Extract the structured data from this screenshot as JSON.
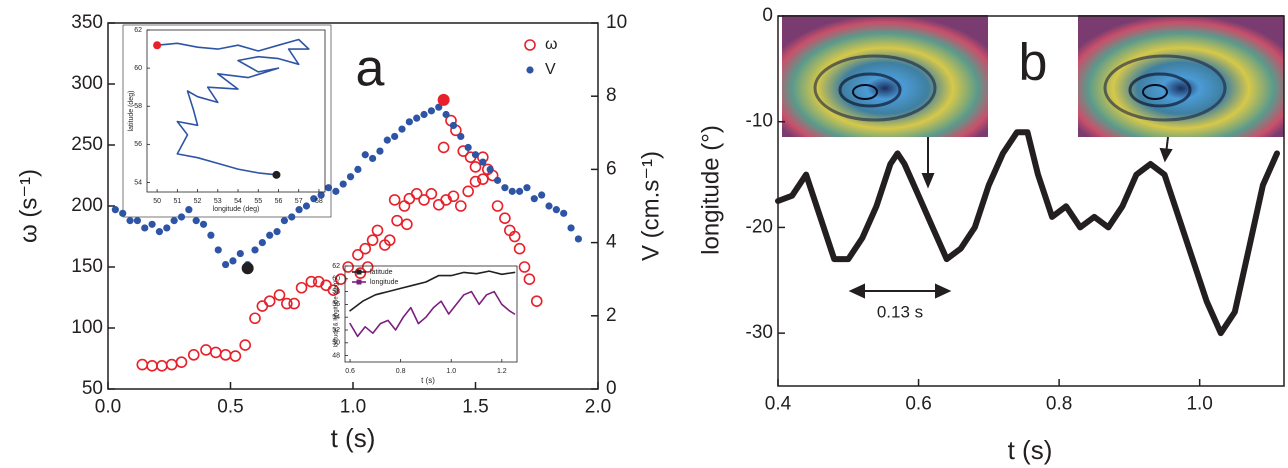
{
  "chart_data": [
    {
      "type": "scatter",
      "label": "a",
      "xlabel": "t (s)",
      "ylabel": "ω (s⁻¹)",
      "y2label": "V (cm.s⁻¹)",
      "xlim": [
        0,
        2
      ],
      "xticks": [
        {
          "value": 0,
          "label": "0.0"
        },
        0.5,
        {
          "value": 1,
          "label": "1.0"
        },
        1.5,
        {
          "value": 2,
          "label": "2.0"
        }
      ],
      "ylim": [
        50,
        350
      ],
      "yticks": [
        50,
        100,
        150,
        200,
        250,
        300,
        350
      ],
      "y2lim": [
        0,
        10
      ],
      "y2ticks": [
        0,
        2,
        4,
        6,
        8,
        10
      ],
      "legend": true,
      "series": [
        {
          "name": "ω",
          "color": "#e8202a",
          "marker": "open",
          "x": [
            0.14,
            0.18,
            0.22,
            0.26,
            0.3,
            0.35,
            0.4,
            0.44,
            0.48,
            0.52,
            0.56,
            0.6,
            0.63,
            0.66,
            0.7,
            0.73,
            0.76,
            0.79,
            0.83,
            0.86,
            0.89,
            0.92,
            0.95,
            0.98,
            1.02,
            1.05,
            1.08,
            1.1,
            1.13,
            1.15,
            1.18,
            1.21,
            1.23,
            1.26,
            1.29,
            1.32,
            1.35,
            1.38,
            1.41,
            1.44,
            1.47,
            1.5,
            1.53,
            1.55,
            1.37,
            1.4,
            1.42,
            1.45,
            1.48,
            1.5,
            1.53,
            1.57,
            1.59,
            1.62,
            1.64,
            1.66,
            1.68,
            1.7,
            1.72,
            1.75,
            1.03,
            1.06,
            1.22,
            1.17
          ],
          "values": [
            70,
            69,
            69,
            70,
            72,
            78,
            82,
            80,
            78,
            77,
            86,
            108,
            118,
            122,
            127,
            120,
            120,
            133,
            138,
            138,
            135,
            131,
            140,
            150,
            160,
            165,
            172,
            180,
            168,
            172,
            188,
            200,
            206,
            210,
            205,
            210,
            201,
            205,
            208,
            200,
            212,
            220,
            222,
            230,
            248,
            270,
            262,
            245,
            240,
            232,
            240,
            225,
            200,
            190,
            180,
            175,
            165,
            150,
            140,
            122,
            145,
            150,
            185,
            205
          ]
        },
        {
          "name": "V",
          "color": "#2e55a5",
          "marker": "dot",
          "axis": "y2",
          "x": [
            0.03,
            0.06,
            0.09,
            0.12,
            0.15,
            0.18,
            0.21,
            0.24,
            0.27,
            0.3,
            0.33,
            0.36,
            0.39,
            0.42,
            0.45,
            0.48,
            0.51,
            0.54,
            0.57,
            0.6,
            0.63,
            0.66,
            0.69,
            0.72,
            0.75,
            0.78,
            0.81,
            0.84,
            0.87,
            0.9,
            0.93,
            0.96,
            0.99,
            1.02,
            1.05,
            1.08,
            1.11,
            1.14,
            1.17,
            1.2,
            1.23,
            1.26,
            1.29,
            1.32,
            1.35,
            1.38,
            1.41,
            1.44,
            1.47,
            1.5,
            1.53,
            1.56,
            1.59,
            1.62,
            1.65,
            1.68,
            1.71,
            1.74,
            1.77,
            1.8,
            1.83,
            1.86,
            1.89,
            1.92
          ],
          "values": [
            4.9,
            4.8,
            4.6,
            4.6,
            4.4,
            4.5,
            4.3,
            4.4,
            4.6,
            4.7,
            4.9,
            4.6,
            4.5,
            4.2,
            3.8,
            3.4,
            3.5,
            3.7,
            3.4,
            3.8,
            4.0,
            4.2,
            4.3,
            4.6,
            4.7,
            4.9,
            5.0,
            5.2,
            5.3,
            5.5,
            5.4,
            5.6,
            5.8,
            6.0,
            6.4,
            6.3,
            6.5,
            6.8,
            6.9,
            7.1,
            7.3,
            7.4,
            7.5,
            7.6,
            7.7,
            7.5,
            7.2,
            6.9,
            6.6,
            6.4,
            6.2,
            6.0,
            5.7,
            5.5,
            5.4,
            5.4,
            5.5,
            5.2,
            5.3,
            5.0,
            4.9,
            4.8,
            4.4,
            4.1
          ]
        }
      ],
      "highlights": [
        {
          "x": 0.57,
          "y": 3.3,
          "axis": "y2",
          "color": "#231f20"
        },
        {
          "x": 1.37,
          "y": 7.9,
          "axis": "y2",
          "color": "#e8202a"
        }
      ]
    },
    {
      "type": "line",
      "xlabel": "longitude (deg)",
      "ylabel": "latitude (deg)",
      "color": "#2e55a5",
      "xlim": [
        49.5,
        58.3
      ],
      "xticks": [
        50,
        51,
        52,
        53,
        54,
        55,
        56,
        57,
        58
      ],
      "ylim": [
        53.5,
        62
      ],
      "yticks": [
        54,
        56,
        58,
        60,
        62
      ],
      "x": [
        50,
        51,
        52,
        53,
        54,
        55,
        56,
        57,
        57.5,
        56.5,
        57,
        56,
        55,
        54,
        55,
        56,
        54.5,
        53,
        54,
        52.5,
        53,
        52,
        51.5,
        51.8,
        52,
        51,
        51.5,
        51,
        52,
        53,
        54,
        55,
        55.9
      ],
      "values": [
        61.2,
        61.3,
        61.1,
        61,
        61.2,
        60.9,
        61.2,
        61.5,
        61,
        61,
        60.2,
        60.5,
        60.6,
        60.4,
        59.8,
        60,
        59.5,
        59.7,
        58.9,
        59,
        58.2,
        58.5,
        58.8,
        57.8,
        57,
        57.2,
        56.5,
        55.5,
        55.3,
        55,
        54.7,
        54.5,
        54.4
      ],
      "highlights": [
        {
          "x": 50,
          "y": 61.2,
          "color": "#e8202a"
        },
        {
          "x": 55.9,
          "y": 54.4,
          "color": "#231f20"
        }
      ]
    },
    {
      "type": "line",
      "xlabel": "t (s)",
      "ylabel": "latitude & longitude (deg)",
      "xlim": [
        0.58,
        1.26
      ],
      "xticks": [
        0.6,
        0.8,
        {
          "value": 1,
          "label": "1.0"
        },
        1.2
      ],
      "ylim": [
        47,
        62
      ],
      "yticks": [
        48,
        50,
        52,
        54,
        56,
        58,
        60,
        62
      ],
      "legend": true,
      "series": [
        {
          "name": "latitude",
          "color": "#231f20",
          "x": [
            0.6,
            0.65,
            0.7,
            0.75,
            0.8,
            0.85,
            0.9,
            0.95,
            1.0,
            1.05,
            1.1,
            1.15,
            1.2,
            1.25
          ],
          "values": [
            55,
            56.5,
            57.5,
            58,
            58.5,
            59,
            59.5,
            60.5,
            60.5,
            61,
            60.8,
            61.2,
            60.7,
            61
          ]
        },
        {
          "name": "longitude",
          "color": "#7b1f7f",
          "x": [
            0.6,
            0.63,
            0.66,
            0.69,
            0.72,
            0.75,
            0.78,
            0.81,
            0.84,
            0.87,
            0.9,
            0.93,
            0.96,
            0.99,
            1.02,
            1.05,
            1.08,
            1.11,
            1.14,
            1.17,
            1.2,
            1.23,
            1.25
          ],
          "values": [
            53,
            51,
            52.5,
            51.5,
            53,
            53.5,
            52,
            54,
            55.5,
            53,
            54,
            55.5,
            56.5,
            54.5,
            56,
            57.5,
            58,
            56,
            57.5,
            58,
            56,
            55,
            54.5
          ]
        }
      ]
    },
    {
      "type": "line",
      "label": "b",
      "xlabel": "t (s)",
      "ylabel": "longitude (°)",
      "annotation": "0.13 s",
      "color": "#231f20",
      "xlim": [
        0.4,
        1.12
      ],
      "xticks": [
        0.4,
        0.6,
        0.8,
        {
          "value": 1,
          "label": "1.0"
        }
      ],
      "ylim": [
        -35,
        0
      ],
      "yticks": [
        0,
        -10,
        -20,
        -30
      ],
      "x": [
        0.4,
        0.42,
        0.44,
        0.46,
        0.48,
        0.5,
        0.52,
        0.54,
        0.56,
        0.57,
        0.58,
        0.6,
        0.62,
        0.64,
        0.66,
        0.68,
        0.7,
        0.72,
        0.74,
        0.755,
        0.77,
        0.79,
        0.81,
        0.83,
        0.85,
        0.87,
        0.89,
        0.91,
        0.93,
        0.95,
        0.97,
        0.99,
        1.01,
        1.03,
        1.05,
        1.07,
        1.09,
        1.11
      ],
      "values": [
        -17.5,
        -17,
        -15,
        -19,
        -23,
        -23,
        -21,
        -18,
        -14,
        -13,
        -14,
        -17,
        -20,
        -23,
        -22,
        -20,
        -16,
        -13,
        -11,
        -11,
        -15,
        -19,
        -18,
        -20,
        -19,
        -20,
        -18,
        -15,
        -14,
        -15,
        -19,
        -23,
        -27,
        -30,
        -28,
        -22,
        -16,
        -13
      ]
    }
  ]
}
